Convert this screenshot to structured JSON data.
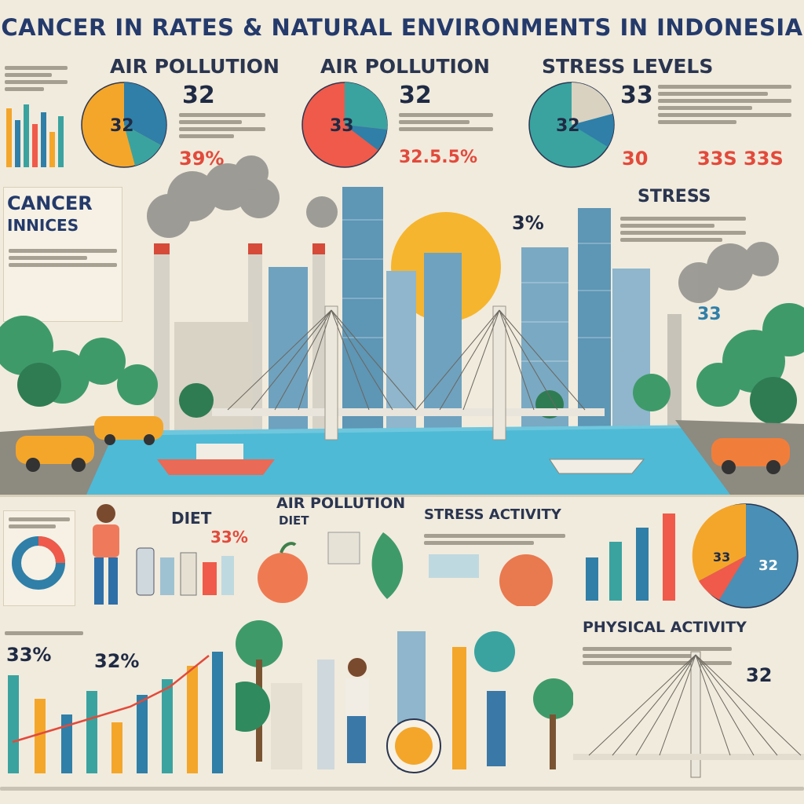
{
  "title": "CANCER IN RATES  &  NATURAL ENVIRONMENTS IN INDONESIA",
  "top": {
    "p1": {
      "heading": "AIR POLLUTION",
      "big": "32",
      "pie": "32",
      "pct": "39%"
    },
    "p2": {
      "heading": "AIR POLLUTION",
      "big": "32",
      "pie": "33",
      "pct": "32.5.5%"
    },
    "p3": {
      "heading": "STRESS LEVELS",
      "big": "33",
      "pie": "32",
      "pct": "30",
      "pct2": "33S 33S"
    }
  },
  "cancer_box": {
    "line1": "CANCER",
    "line2": "INNICES"
  },
  "stress": {
    "heading": "STRESS",
    "pct": "3%"
  },
  "right_mid": {
    "value": "33"
  },
  "bottom": {
    "diet": {
      "heading": "DIET",
      "pct": "33%"
    },
    "air": {
      "heading": "AIR POLLUTION",
      "sub": "DIET"
    },
    "stress_activity": "STRESS ACTIVITY",
    "physical": {
      "heading": "PHYSICAL ACTIVITY",
      "value": "32"
    },
    "right_pie": {
      "a": "33",
      "b": "32"
    },
    "left_pct1": "33%",
    "left_pct2": "32%"
  },
  "colors": {
    "blue": "#2f7fa8",
    "teal": "#3aa3a0",
    "orange": "#f4a62a",
    "red": "#ef5a4a",
    "navy": "#243a6b"
  }
}
